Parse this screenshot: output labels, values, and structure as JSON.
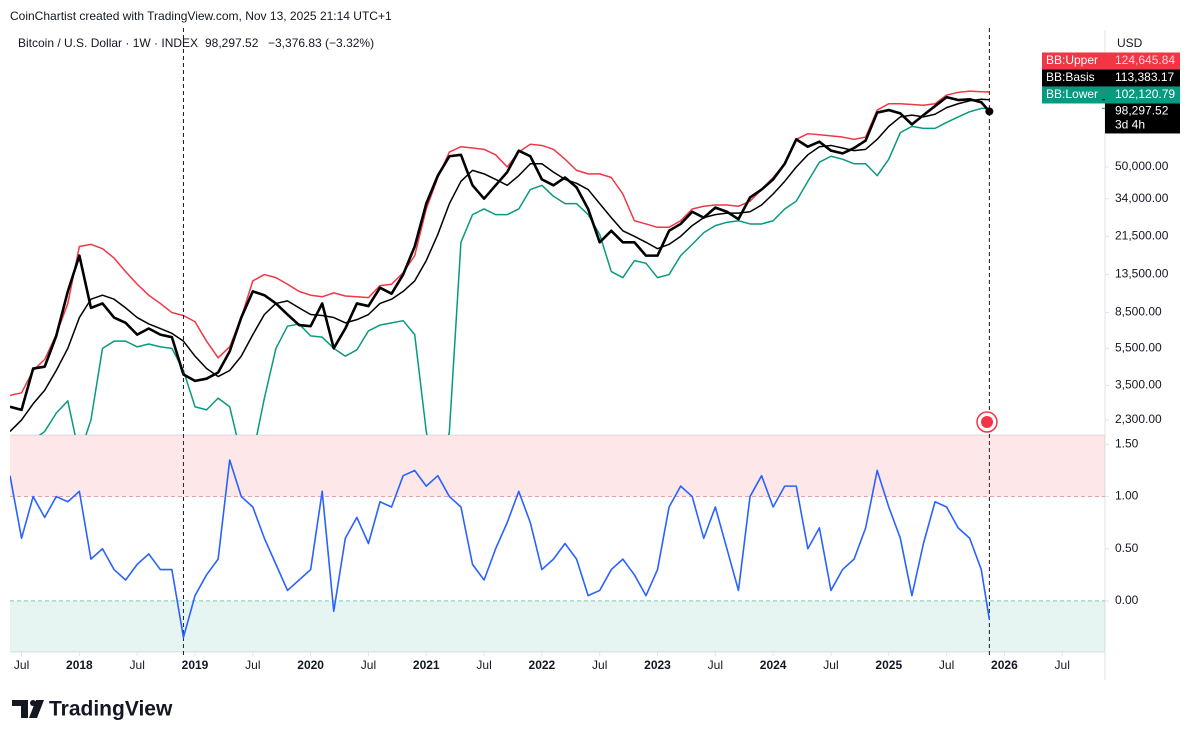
{
  "header": {
    "credit": "CoinChartist created with TradingView.com, Nov 13, 2025 21:14 UTC+1",
    "symbol": "Bitcoin / U.S. Dollar · 1W · INDEX",
    "price": "98,297.52",
    "change": "−3,376.83 (−3.32%)"
  },
  "currency": "USD",
  "brand": "TradingView",
  "chart_data": [
    {
      "type": "line",
      "log_scale": true,
      "xlim": [
        2017.4,
        2026.87
      ],
      "ylim": [
        1915,
        265000
      ],
      "yticks": [
        {
          "value": 2300,
          "label": "2,300.00"
        },
        {
          "value": 3500,
          "label": "3,500.00"
        },
        {
          "value": 5500,
          "label": "5,500.00"
        },
        {
          "value": 8500,
          "label": "8,500.00"
        },
        {
          "value": 13500,
          "label": "13,500.00"
        },
        {
          "value": 21500,
          "label": "21,500.00"
        },
        {
          "value": 34000,
          "label": "34,000.00"
        },
        {
          "value": 50000,
          "label": "50,000.00"
        }
      ],
      "vlines": [
        2018.9,
        2025.87
      ],
      "x": [
        2017.4,
        2017.5,
        2017.6,
        2017.7,
        2017.8,
        2017.9,
        2018.0,
        2018.1,
        2018.2,
        2018.3,
        2018.4,
        2018.5,
        2018.6,
        2018.7,
        2018.8,
        2018.9,
        2019.0,
        2019.1,
        2019.2,
        2019.3,
        2019.4,
        2019.5,
        2019.6,
        2019.7,
        2019.8,
        2019.9,
        2020.0,
        2020.1,
        2020.2,
        2020.3,
        2020.4,
        2020.5,
        2020.6,
        2020.7,
        2020.8,
        2020.9,
        2021.0,
        2021.1,
        2021.2,
        2021.3,
        2021.4,
        2021.5,
        2021.6,
        2021.7,
        2021.8,
        2021.9,
        2022.0,
        2022.1,
        2022.2,
        2022.3,
        2022.4,
        2022.5,
        2022.6,
        2022.7,
        2022.8,
        2022.9,
        2023.0,
        2023.1,
        2023.2,
        2023.3,
        2023.4,
        2023.5,
        2023.6,
        2023.7,
        2023.8,
        2023.9,
        2024.0,
        2024.1,
        2024.2,
        2024.3,
        2024.4,
        2024.5,
        2024.6,
        2024.7,
        2024.8,
        2024.9,
        2025.0,
        2025.1,
        2025.2,
        2025.3,
        2025.4,
        2025.5,
        2025.6,
        2025.7,
        2025.8,
        2025.87
      ],
      "series": [
        {
          "name": "BB:Upper",
          "color": "#f23645",
          "last_value_label": "124,645.84",
          "values": [
            3100,
            3200,
            4200,
            4800,
            6500,
            9500,
            19000,
            19500,
            18500,
            16500,
            14000,
            12000,
            10500,
            9500,
            8500,
            8200,
            7600,
            6000,
            4900,
            5600,
            8000,
            12500,
            13500,
            13000,
            12000,
            11000,
            10500,
            10300,
            10800,
            10400,
            10300,
            10200,
            11800,
            12000,
            13800,
            17000,
            30000,
            44000,
            60000,
            64000,
            63000,
            62000,
            58000,
            50000,
            60000,
            66000,
            65000,
            62000,
            55000,
            48000,
            46000,
            46000,
            44000,
            36000,
            26000,
            25000,
            24000,
            24000,
            26000,
            30000,
            31000,
            31500,
            31500,
            31000,
            33000,
            38000,
            44000,
            52000,
            70000,
            75000,
            74000,
            73000,
            72000,
            70000,
            72000,
            100000,
            108000,
            108000,
            107000,
            106000,
            108000,
            120000,
            124000,
            126000,
            125000,
            124645.84
          ]
        },
        {
          "name": "BB:Basis",
          "color": "#000000",
          "last_value_label": "113,383.17",
          "values": [
            2000,
            2300,
            2800,
            3300,
            4200,
            5500,
            8000,
            10000,
            10500,
            10000,
            9000,
            8000,
            7400,
            7000,
            6600,
            6000,
            5000,
            4300,
            3900,
            4200,
            5000,
            6500,
            8300,
            9500,
            9800,
            9000,
            8300,
            8200,
            8000,
            7500,
            7800,
            8300,
            9500,
            10000,
            11000,
            12500,
            16000,
            22000,
            32000,
            42000,
            48000,
            46000,
            43000,
            40000,
            45000,
            52000,
            52000,
            47000,
            43000,
            41000,
            38000,
            32000,
            27000,
            23000,
            21500,
            20000,
            18500,
            19500,
            21500,
            24500,
            27000,
            28000,
            28500,
            28500,
            29000,
            31500,
            36000,
            42000,
            50000,
            58000,
            64000,
            65000,
            63000,
            61000,
            62000,
            70000,
            82000,
            92000,
            94000,
            92000,
            95000,
            103000,
            108000,
            112000,
            114000,
            113383.17
          ]
        },
        {
          "name": "BB:Lower",
          "color": "#089981",
          "last_value_label": "102,120.79",
          "values": [
            1300,
            1500,
            1800,
            2000,
            2500,
            2900,
            1500,
            2300,
            5500,
            6000,
            6000,
            5600,
            5800,
            5600,
            5500,
            4200,
            2700,
            2600,
            3000,
            2700,
            1500,
            1500,
            3000,
            5500,
            7200,
            7400,
            6400,
            6300,
            5500,
            5000,
            5400,
            6800,
            7300,
            7500,
            7700,
            6500,
            2000,
            900,
            2000,
            20000,
            28000,
            30000,
            28000,
            28000,
            30000,
            38000,
            40000,
            35000,
            32000,
            32000,
            28000,
            22000,
            14000,
            13000,
            16000,
            15500,
            13000,
            13500,
            17000,
            19500,
            22500,
            24500,
            25500,
            26000,
            25000,
            25000,
            26000,
            30000,
            33000,
            42000,
            53000,
            57000,
            55000,
            52000,
            52000,
            45000,
            55000,
            76000,
            82000,
            80000,
            80000,
            86000,
            92000,
            98000,
            102000,
            102120.79
          ]
        },
        {
          "color": "#000000",
          "last_value_label": "98,297.52",
          "countdown": "3d 4h",
          "values": [
            2700,
            2600,
            4300,
            4400,
            6400,
            11000,
            17000,
            9000,
            9500,
            8000,
            7500,
            6500,
            7000,
            6500,
            6300,
            4000,
            3700,
            3800,
            4100,
            5300,
            8000,
            11000,
            10500,
            9500,
            8300,
            7300,
            7200,
            9500,
            5500,
            7000,
            9500,
            9200,
            11500,
            10700,
            13500,
            19000,
            32000,
            45000,
            57000,
            58000,
            40000,
            34000,
            40000,
            47000,
            61000,
            57000,
            43000,
            40000,
            44000,
            39000,
            30000,
            20000,
            23000,
            20000,
            20000,
            17000,
            17000,
            23000,
            25000,
            29000,
            27000,
            30500,
            29000,
            26500,
            34500,
            38000,
            43000,
            52000,
            70000,
            64000,
            68000,
            61000,
            59000,
            63000,
            69000,
            97000,
            100000,
            96000,
            84000,
            94000,
            105000,
            117000,
            113000,
            114000,
            110000,
            98297.52
          ]
        }
      ]
    },
    {
      "type": "line",
      "xlim": [
        2017.4,
        2026.87
      ],
      "ylim": [
        -0.49,
        1.59
      ],
      "yticks": [
        {
          "value": 0,
          "label": "0.00"
        },
        {
          "value": 0.5,
          "label": "0.50"
        },
        {
          "value": 1,
          "label": "1.00"
        },
        {
          "value": 1.5,
          "label": "1.50"
        }
      ],
      "levels": [
        0,
        1
      ],
      "xticks": [
        {
          "value": 2017.5,
          "label": "Jul"
        },
        2018,
        {
          "value": 2018.5,
          "label": "Jul"
        },
        2019,
        {
          "value": 2019.5,
          "label": "Jul"
        },
        2020,
        {
          "value": 2020.5,
          "label": "Jul"
        },
        2021,
        {
          "value": 2021.5,
          "label": "Jul"
        },
        2022,
        {
          "value": 2022.5,
          "label": "Jul"
        },
        2023,
        {
          "value": 2023.5,
          "label": "Jul"
        },
        2024,
        {
          "value": 2024.5,
          "label": "Jul"
        },
        2025,
        {
          "value": 2025.5,
          "label": "Jul"
        },
        2026,
        {
          "value": 2026.5,
          "label": "Jul"
        }
      ],
      "x": [
        2017.4,
        2017.5,
        2017.6,
        2017.7,
        2017.8,
        2017.9,
        2018.0,
        2018.1,
        2018.2,
        2018.3,
        2018.4,
        2018.5,
        2018.6,
        2018.7,
        2018.8,
        2018.9,
        2019.0,
        2019.1,
        2019.2,
        2019.3,
        2019.4,
        2019.5,
        2019.6,
        2019.7,
        2019.8,
        2019.9,
        2020.0,
        2020.1,
        2020.2,
        2020.3,
        2020.4,
        2020.5,
        2020.6,
        2020.7,
        2020.8,
        2020.9,
        2021.0,
        2021.1,
        2021.2,
        2021.3,
        2021.4,
        2021.5,
        2021.6,
        2021.7,
        2021.8,
        2021.9,
        2022.0,
        2022.1,
        2022.2,
        2022.3,
        2022.4,
        2022.5,
        2022.6,
        2022.7,
        2022.8,
        2022.9,
        2023.0,
        2023.1,
        2023.2,
        2023.3,
        2023.4,
        2023.5,
        2023.6,
        2023.7,
        2023.8,
        2023.9,
        2024.0,
        2024.1,
        2024.2,
        2024.3,
        2024.4,
        2024.5,
        2024.6,
        2024.7,
        2024.8,
        2024.9,
        2025.0,
        2025.1,
        2025.2,
        2025.3,
        2025.4,
        2025.5,
        2025.6,
        2025.7,
        2025.8,
        2025.87
      ],
      "series": [
        {
          "color": "#2962ff",
          "values": [
            1.2,
            0.6,
            1.0,
            0.8,
            1.0,
            0.95,
            1.05,
            0.4,
            0.5,
            0.3,
            0.2,
            0.35,
            0.45,
            0.3,
            0.3,
            -0.35,
            0.05,
            0.25,
            0.4,
            1.35,
            1.0,
            0.9,
            0.6,
            0.35,
            0.1,
            0.2,
            0.3,
            1.05,
            -0.1,
            0.6,
            0.8,
            0.55,
            0.95,
            0.9,
            1.2,
            1.25,
            1.1,
            1.2,
            1.0,
            0.9,
            0.35,
            0.2,
            0.5,
            0.75,
            1.05,
            0.75,
            0.3,
            0.4,
            0.55,
            0.4,
            0.05,
            0.1,
            0.3,
            0.4,
            0.25,
            0.05,
            0.3,
            0.9,
            1.1,
            1.0,
            0.6,
            0.9,
            0.5,
            0.1,
            1.0,
            1.2,
            0.9,
            1.1,
            1.1,
            0.5,
            0.7,
            0.1,
            0.3,
            0.4,
            0.7,
            1.25,
            0.9,
            0.6,
            0.05,
            0.55,
            0.95,
            0.9,
            0.7,
            0.6,
            0.3,
            -0.18
          ]
        }
      ]
    }
  ]
}
